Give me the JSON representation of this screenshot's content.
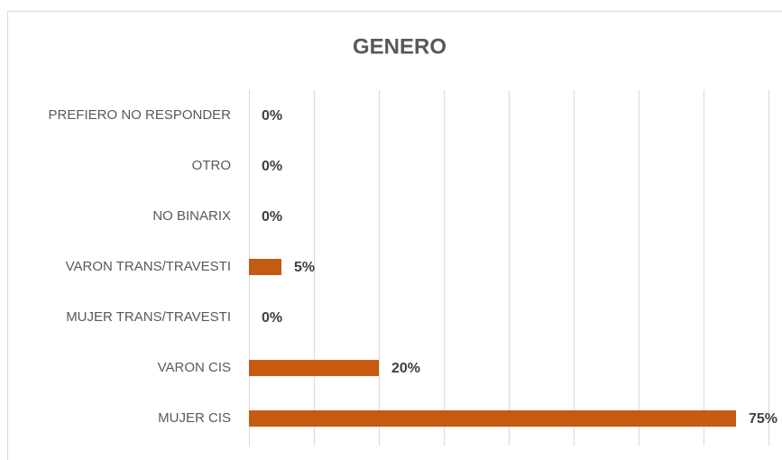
{
  "chart_data": {
    "type": "bar",
    "orientation": "horizontal",
    "title": "GENERO",
    "categories": [
      "PREFIERO NO RESPONDER",
      "OTRO",
      "NO BINARIX",
      "VARON TRANS/TRAVESTI",
      "MUJER TRANS/TRAVESTI",
      "VARON CIS",
      "MUJER CIS"
    ],
    "values": [
      0,
      0,
      0,
      5,
      0,
      20,
      75
    ],
    "value_labels": [
      "0%",
      "0%",
      "0%",
      "5%",
      "0%",
      "20%",
      "75%"
    ],
    "color": "#c55a11",
    "xlim": [
      0,
      80
    ],
    "xticks": [
      0,
      10,
      20,
      30,
      40,
      50,
      60,
      70,
      80
    ],
    "grid": true
  }
}
